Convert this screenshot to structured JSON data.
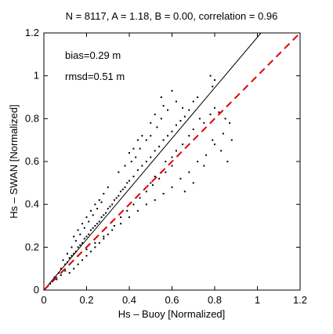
{
  "chart_data": {
    "type": "scatter",
    "title": "N = 8117, A = 1.18, B = 0.00, correlation = 0.96",
    "xlabel": "Hs – Buoy [Normalized]",
    "ylabel": "Hs – SWAN [Normalized]",
    "xlim": [
      0,
      1.2
    ],
    "ylim": [
      0,
      1.2
    ],
    "xticks": [
      "0",
      "0.2",
      "0.4",
      "0.6",
      "0.8",
      "1",
      "1.2"
    ],
    "yticks": [
      "0",
      "0.2",
      "0.4",
      "0.6",
      "0.8",
      "1",
      "1.2"
    ],
    "annotations": [
      "bias=0.29 m",
      "rmsd=0.51 m"
    ],
    "grid": false,
    "regression_line": {
      "slope": 1.18,
      "intercept": 0.0,
      "color": "#000000"
    },
    "reference_line": {
      "slope": 1.0,
      "intercept": 0.0,
      "color": "#dd0000",
      "style": "dashed"
    },
    "point_color": "#000000",
    "points": [
      [
        0.05,
        0.06
      ],
      [
        0.07,
        0.08
      ],
      [
        0.08,
        0.1
      ],
      [
        0.1,
        0.12
      ],
      [
        0.11,
        0.13
      ],
      [
        0.12,
        0.15
      ],
      [
        0.13,
        0.16
      ],
      [
        0.14,
        0.17
      ],
      [
        0.15,
        0.18
      ],
      [
        0.16,
        0.2
      ],
      [
        0.17,
        0.21
      ],
      [
        0.18,
        0.22
      ],
      [
        0.19,
        0.24
      ],
      [
        0.2,
        0.25
      ],
      [
        0.21,
        0.26
      ],
      [
        0.22,
        0.28
      ],
      [
        0.23,
        0.29
      ],
      [
        0.24,
        0.3
      ],
      [
        0.25,
        0.31
      ],
      [
        0.26,
        0.32
      ],
      [
        0.27,
        0.34
      ],
      [
        0.28,
        0.35
      ],
      [
        0.29,
        0.36
      ],
      [
        0.3,
        0.38
      ],
      [
        0.31,
        0.39
      ],
      [
        0.32,
        0.4
      ],
      [
        0.33,
        0.42
      ],
      [
        0.34,
        0.43
      ],
      [
        0.35,
        0.44
      ],
      [
        0.36,
        0.46
      ],
      [
        0.37,
        0.47
      ],
      [
        0.38,
        0.48
      ],
      [
        0.39,
        0.5
      ],
      [
        0.4,
        0.51
      ],
      [
        0.42,
        0.53
      ],
      [
        0.44,
        0.56
      ],
      [
        0.46,
        0.58
      ],
      [
        0.48,
        0.6
      ],
      [
        0.5,
        0.62
      ],
      [
        0.52,
        0.65
      ],
      [
        0.54,
        0.67
      ],
      [
        0.56,
        0.7
      ],
      [
        0.58,
        0.72
      ],
      [
        0.6,
        0.74
      ],
      [
        0.62,
        0.77
      ],
      [
        0.64,
        0.79
      ],
      [
        0.66,
        0.81
      ],
      [
        0.68,
        0.84
      ],
      [
        0.7,
        0.88
      ],
      [
        0.72,
        0.9
      ],
      [
        0.6,
        0.93
      ],
      [
        0.62,
        0.88
      ],
      [
        0.65,
        0.85
      ],
      [
        0.55,
        0.8
      ],
      [
        0.53,
        0.76
      ],
      [
        0.5,
        0.72
      ],
      [
        0.48,
        0.7
      ],
      [
        0.45,
        0.66
      ],
      [
        0.43,
        0.62
      ],
      [
        0.41,
        0.6
      ],
      [
        0.5,
        0.5
      ],
      [
        0.52,
        0.53
      ],
      [
        0.55,
        0.55
      ],
      [
        0.57,
        0.6
      ],
      [
        0.6,
        0.62
      ],
      [
        0.62,
        0.65
      ],
      [
        0.65,
        0.68
      ],
      [
        0.68,
        0.72
      ],
      [
        0.7,
        0.75
      ],
      [
        0.73,
        0.8
      ],
      [
        0.75,
        0.78
      ],
      [
        0.78,
        0.82
      ],
      [
        0.8,
        0.85
      ],
      [
        0.82,
        0.83
      ],
      [
        0.85,
        0.8
      ],
      [
        0.87,
        0.78
      ],
      [
        0.84,
        0.73
      ],
      [
        0.8,
        0.68
      ],
      [
        0.76,
        0.63
      ],
      [
        0.72,
        0.6
      ],
      [
        0.68,
        0.55
      ],
      [
        0.64,
        0.52
      ],
      [
        0.6,
        0.48
      ],
      [
        0.56,
        0.45
      ],
      [
        0.52,
        0.42
      ],
      [
        0.48,
        0.4
      ],
      [
        0.44,
        0.37
      ],
      [
        0.4,
        0.34
      ],
      [
        0.36,
        0.31
      ],
      [
        0.32,
        0.28
      ],
      [
        0.28,
        0.25
      ],
      [
        0.24,
        0.22
      ],
      [
        0.2,
        0.19
      ],
      [
        0.16,
        0.16
      ],
      [
        0.12,
        0.12
      ],
      [
        0.1,
        0.09
      ],
      [
        0.08,
        0.07
      ],
      [
        0.06,
        0.05
      ],
      [
        0.04,
        0.04
      ],
      [
        0.03,
        0.03
      ],
      [
        0.78,
        1.0
      ],
      [
        0.79,
        0.95
      ],
      [
        0.8,
        0.98
      ],
      [
        0.88,
        0.7
      ],
      [
        0.86,
        0.6
      ],
      [
        0.83,
        0.65
      ],
      [
        0.79,
        0.7
      ],
      [
        0.75,
        0.58
      ],
      [
        0.7,
        0.5
      ],
      [
        0.66,
        0.46
      ],
      [
        0.35,
        0.55
      ],
      [
        0.3,
        0.48
      ],
      [
        0.28,
        0.45
      ],
      [
        0.26,
        0.42
      ],
      [
        0.24,
        0.4
      ],
      [
        0.22,
        0.37
      ],
      [
        0.2,
        0.34
      ],
      [
        0.18,
        0.31
      ],
      [
        0.16,
        0.28
      ],
      [
        0.14,
        0.25
      ],
      [
        0.38,
        0.58
      ],
      [
        0.4,
        0.64
      ],
      [
        0.42,
        0.66
      ],
      [
        0.44,
        0.7
      ],
      [
        0.46,
        0.72
      ],
      [
        0.5,
        0.78
      ],
      [
        0.52,
        0.82
      ],
      [
        0.56,
        0.86
      ],
      [
        0.58,
        0.84
      ],
      [
        0.55,
        0.9
      ],
      [
        0.09,
        0.14
      ],
      [
        0.11,
        0.17
      ],
      [
        0.13,
        0.2
      ],
      [
        0.15,
        0.23
      ],
      [
        0.17,
        0.26
      ],
      [
        0.19,
        0.29
      ],
      [
        0.21,
        0.32
      ],
      [
        0.23,
        0.35
      ],
      [
        0.25,
        0.38
      ],
      [
        0.27,
        0.41
      ],
      [
        0.12,
        0.08
      ],
      [
        0.14,
        0.1
      ],
      [
        0.16,
        0.12
      ],
      [
        0.18,
        0.14
      ],
      [
        0.2,
        0.16
      ],
      [
        0.22,
        0.18
      ],
      [
        0.24,
        0.2
      ],
      [
        0.26,
        0.22
      ],
      [
        0.28,
        0.24
      ],
      [
        0.3,
        0.26
      ],
      [
        0.33,
        0.3
      ],
      [
        0.36,
        0.34
      ],
      [
        0.39,
        0.37
      ],
      [
        0.42,
        0.4
      ],
      [
        0.45,
        0.43
      ],
      [
        0.48,
        0.46
      ],
      [
        0.51,
        0.49
      ],
      [
        0.54,
        0.52
      ],
      [
        0.57,
        0.55
      ],
      [
        0.6,
        0.58
      ]
    ]
  }
}
